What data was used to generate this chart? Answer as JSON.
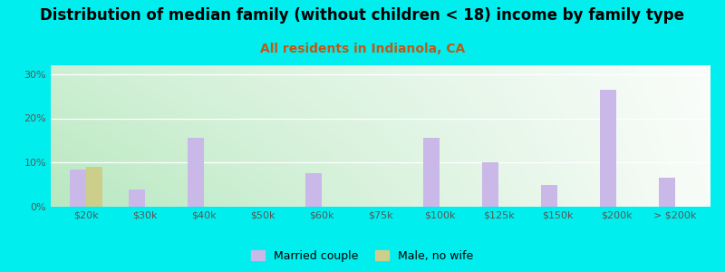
{
  "title": "Distribution of median family (without children < 18) income by family type",
  "subtitle": "All residents in Indianola, CA",
  "categories": [
    "$20k",
    "$30k",
    "$40k",
    "$50k",
    "$60k",
    "$75k",
    "$100k",
    "$125k",
    "$150k",
    "$200k",
    "> $200k"
  ],
  "married_couple": [
    8.5,
    4.0,
    15.5,
    0,
    7.5,
    0,
    15.5,
    10.0,
    5.0,
    26.5,
    6.5
  ],
  "male_no_wife": [
    9.0,
    0,
    0,
    0,
    0,
    0,
    0,
    0,
    0,
    0,
    0
  ],
  "bar_width": 0.28,
  "married_color": "#c9b8e8",
  "male_color": "#cccf8a",
  "title_fontsize": 12,
  "subtitle_fontsize": 10,
  "subtitle_color": "#c05818",
  "background_outer": "#00eeee",
  "ylim": [
    0,
    32
  ],
  "yticks": [
    0,
    10,
    20,
    30
  ],
  "ytick_labels": [
    "0%",
    "10%",
    "20%",
    "30%"
  ],
  "grad_color_left": "#b8e8c0",
  "grad_color_right": "#f0f8f0"
}
